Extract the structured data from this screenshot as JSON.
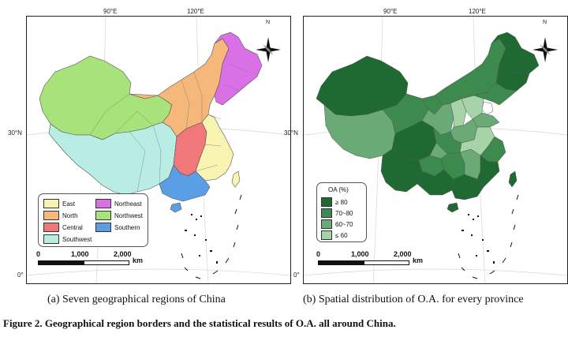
{
  "panel_a": {
    "lon_labels": [
      "90°E",
      "120°E"
    ],
    "lat_labels": [
      "30°N",
      "0°"
    ],
    "compass_label": "N",
    "legend": {
      "items": [
        {
          "label": "East",
          "color": "#f7f3b0"
        },
        {
          "label": "Northeast",
          "color": "#d970e6"
        },
        {
          "label": "North",
          "color": "#f5b87a"
        },
        {
          "label": "Northwest",
          "color": "#a8e27a"
        },
        {
          "label": "Central",
          "color": "#f07878"
        },
        {
          "label": "Southern",
          "color": "#5a9ee6"
        },
        {
          "label": "Southwest",
          "color": "#b9ede3"
        }
      ]
    },
    "scale": {
      "labels": [
        "0",
        "1,000",
        "2,000"
      ],
      "unit": "km"
    },
    "caption": "(a)   Seven geographical regions of China"
  },
  "panel_b": {
    "lon_labels": [
      "90°E",
      "120°E"
    ],
    "lat_labels": [
      "30°N",
      "0°"
    ],
    "compass_label": "N",
    "legend": {
      "title": "OA (%)",
      "items": [
        {
          "label": "≥ 80",
          "color": "#1f6a33"
        },
        {
          "label": "70~80",
          "color": "#3d8a4f"
        },
        {
          "label": "60~70",
          "color": "#6aaa77"
        },
        {
          "label": "≤ 60",
          "color": "#a6d3a8"
        }
      ]
    },
    "scale": {
      "labels": [
        "0",
        "1,000",
        "2,000"
      ],
      "unit": "km"
    },
    "caption": "(b)   Spatial distribution of O.A. for every province"
  },
  "figure_caption": "Figure 2. Geographical region borders and the statistical results of O.A. all around China."
}
